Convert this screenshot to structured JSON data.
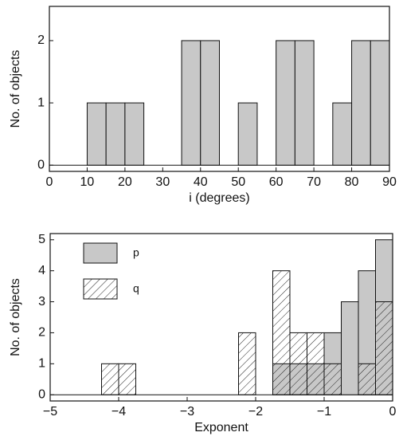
{
  "chart_data": [
    {
      "type": "histogram",
      "xlabel": "i (degrees)",
      "ylabel": "No. of objects",
      "bins": [
        0,
        5,
        10,
        15,
        20,
        25,
        30,
        35,
        40,
        45,
        50,
        55,
        60,
        65,
        70,
        75,
        80,
        85,
        90
      ],
      "series": [
        {
          "color": "#c8c8c8",
          "values": [
            0,
            0,
            1,
            1,
            1,
            0,
            0,
            2,
            2,
            0,
            1,
            0,
            2,
            2,
            0,
            1,
            2,
            2
          ]
        }
      ],
      "xlim": [
        0,
        90
      ],
      "ylim": [
        -0.1,
        2.55
      ],
      "xticks": [
        0,
        10,
        20,
        30,
        40,
        50,
        60,
        70,
        80,
        90
      ],
      "yticks": [
        0,
        1,
        2
      ]
    },
    {
      "type": "histogram",
      "xlabel": "Exponent",
      "ylabel": "No. of objects",
      "bins": [
        -5,
        -4.75,
        -4.5,
        -4.25,
        -4,
        -3.75,
        -3.5,
        -3.25,
        -3,
        -2.75,
        -2.5,
        -2.25,
        -2,
        -1.75,
        -1.5,
        -1.25,
        -1,
        -0.75,
        -0.5,
        -0.25,
        0
      ],
      "series": [
        {
          "name": "p",
          "color": "#c8c8c8",
          "hatch": false,
          "values": [
            0,
            0,
            0,
            0,
            0,
            0,
            0,
            0,
            0,
            0,
            0,
            0,
            0,
            1,
            1,
            1,
            2,
            3,
            4,
            5
          ]
        },
        {
          "name": "q",
          "color": "#222222",
          "hatch": true,
          "values": [
            0,
            0,
            0,
            1,
            1,
            0,
            0,
            0,
            0,
            0,
            0,
            2,
            0,
            4,
            2,
            2,
            1,
            0,
            1,
            3
          ]
        }
      ],
      "legend": "upper left",
      "xlim": [
        -5,
        0
      ],
      "ylim": [
        -0.2,
        5.2
      ],
      "xticks": [
        {
          "value": -5,
          "label": "−5"
        },
        {
          "value": -4,
          "label": "−4"
        },
        {
          "value": -3,
          "label": "−3"
        },
        {
          "value": -2,
          "label": "−2"
        },
        {
          "value": -1,
          "label": "−1"
        },
        0
      ],
      "yticks": [
        0,
        1,
        2,
        3,
        4,
        5
      ]
    }
  ]
}
